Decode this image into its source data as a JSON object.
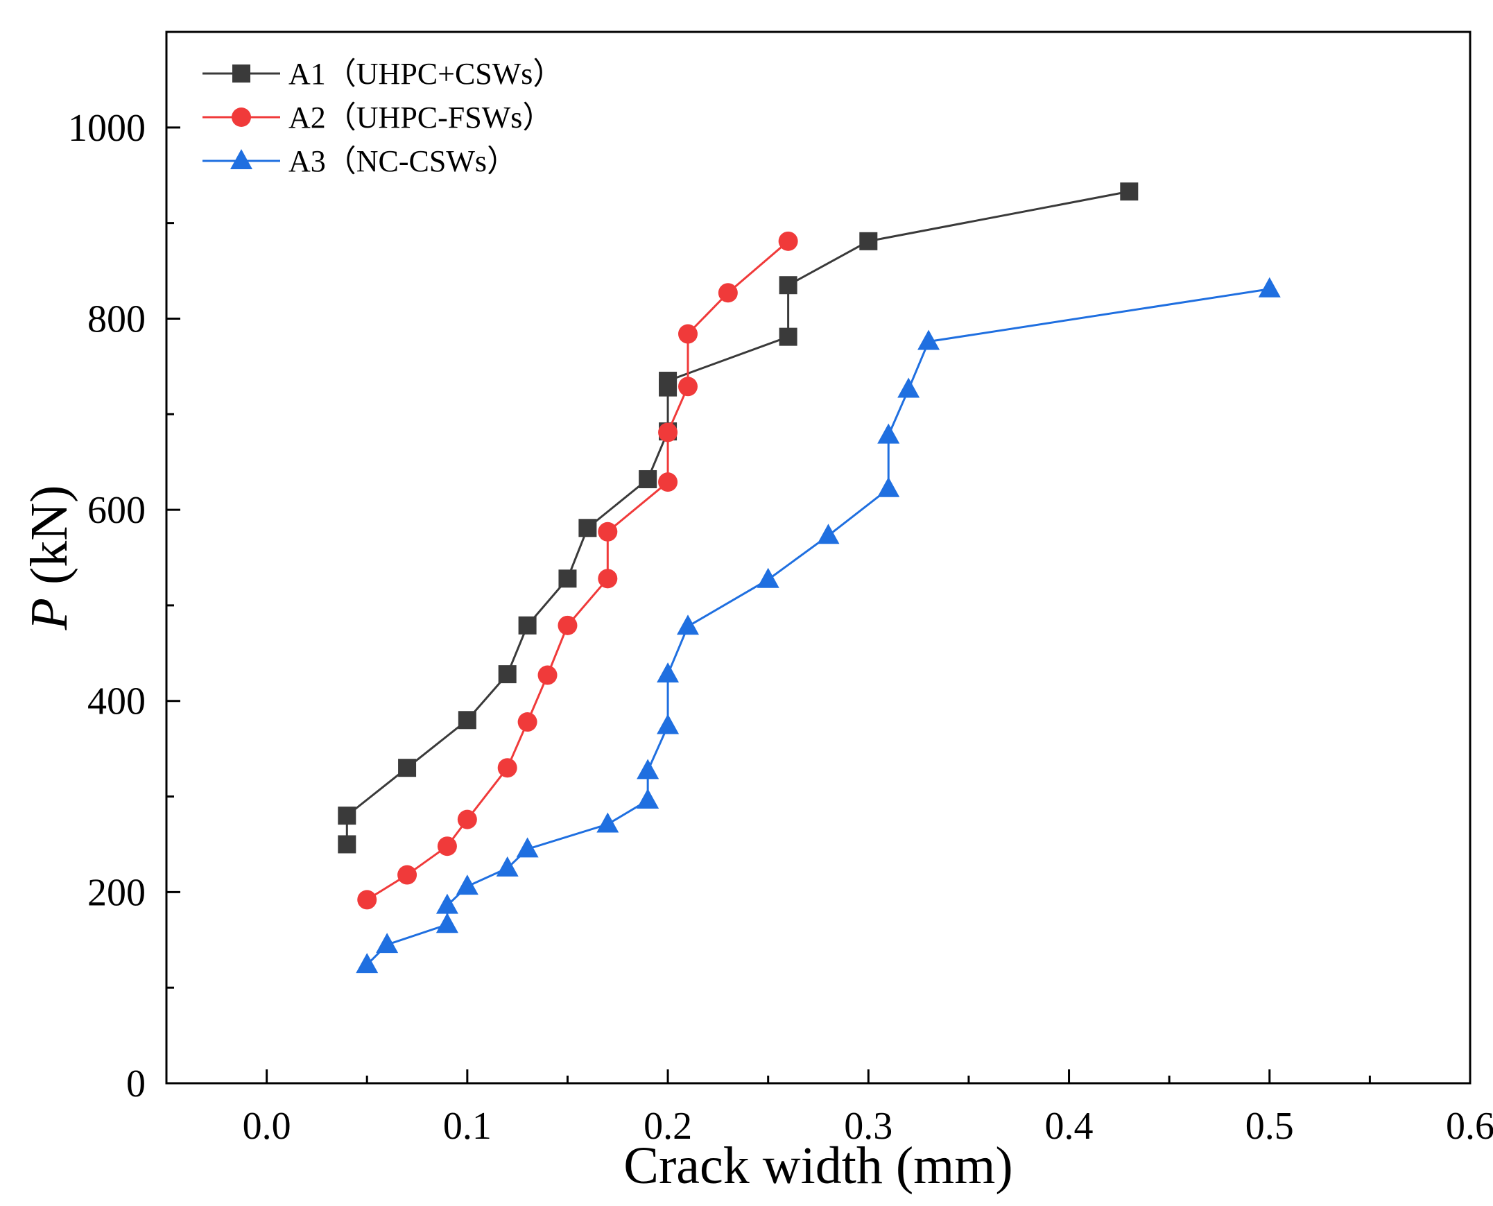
{
  "chart_data": {
    "type": "line",
    "title": "",
    "xlabel": "Crack width (mm)",
    "ylabel_symbol": "P",
    "ylabel_unit": " (kN)",
    "xlim": [
      -0.05,
      0.6
    ],
    "ylim": [
      0,
      1100
    ],
    "xticks": [
      0.0,
      0.1,
      0.2,
      0.3,
      0.4,
      0.5,
      0.6
    ],
    "xtick_labels": [
      "0.0",
      "0.1",
      "0.2",
      "0.3",
      "0.4",
      "0.5",
      "0.6"
    ],
    "xminor": [
      -0.05,
      0.05,
      0.15,
      0.25,
      0.35,
      0.45,
      0.55
    ],
    "yticks": [
      0,
      200,
      400,
      600,
      800,
      1000
    ],
    "ytick_labels": [
      "0",
      "200",
      "400",
      "600",
      "800",
      "1000"
    ],
    "yminor": [
      100,
      300,
      500,
      700,
      900
    ],
    "grid": false,
    "legend_position": "top-left",
    "series": [
      {
        "name": "A1（UHPC+CSWs）",
        "color": "#3a3a3a",
        "marker": "square",
        "points": [
          [
            0.04,
            250
          ],
          [
            0.04,
            280
          ],
          [
            0.07,
            330
          ],
          [
            0.1,
            380
          ],
          [
            0.12,
            428
          ],
          [
            0.13,
            479
          ],
          [
            0.15,
            528
          ],
          [
            0.16,
            581
          ],
          [
            0.19,
            632
          ],
          [
            0.2,
            682
          ],
          [
            0.2,
            728
          ],
          [
            0.2,
            735
          ],
          [
            0.26,
            781
          ],
          [
            0.26,
            835
          ],
          [
            0.3,
            881
          ],
          [
            0.43,
            933
          ]
        ]
      },
      {
        "name": "A2（UHPC-FSWs）",
        "color": "#f03a3a",
        "marker": "circle",
        "points": [
          [
            0.05,
            192
          ],
          [
            0.07,
            218
          ],
          [
            0.09,
            248
          ],
          [
            0.1,
            276
          ],
          [
            0.12,
            330
          ],
          [
            0.13,
            378
          ],
          [
            0.14,
            427
          ],
          [
            0.15,
            479
          ],
          [
            0.17,
            528
          ],
          [
            0.17,
            577
          ],
          [
            0.2,
            629
          ],
          [
            0.2,
            681
          ],
          [
            0.21,
            729
          ],
          [
            0.21,
            784
          ],
          [
            0.23,
            827
          ],
          [
            0.26,
            881
          ]
        ]
      },
      {
        "name": "A3（NC-CSWs）",
        "color": "#1f6fe0",
        "marker": "triangle",
        "points": [
          [
            0.05,
            124
          ],
          [
            0.06,
            145
          ],
          [
            0.09,
            166
          ],
          [
            0.09,
            186
          ],
          [
            0.1,
            206
          ],
          [
            0.12,
            225
          ],
          [
            0.13,
            245
          ],
          [
            0.17,
            271
          ],
          [
            0.19,
            296
          ],
          [
            0.19,
            327
          ],
          [
            0.2,
            374
          ],
          [
            0.2,
            428
          ],
          [
            0.21,
            478
          ],
          [
            0.25,
            527
          ],
          [
            0.28,
            573
          ],
          [
            0.31,
            622
          ],
          [
            0.31,
            678
          ],
          [
            0.32,
            726
          ],
          [
            0.33,
            776
          ],
          [
            0.5,
            831
          ]
        ]
      }
    ]
  }
}
